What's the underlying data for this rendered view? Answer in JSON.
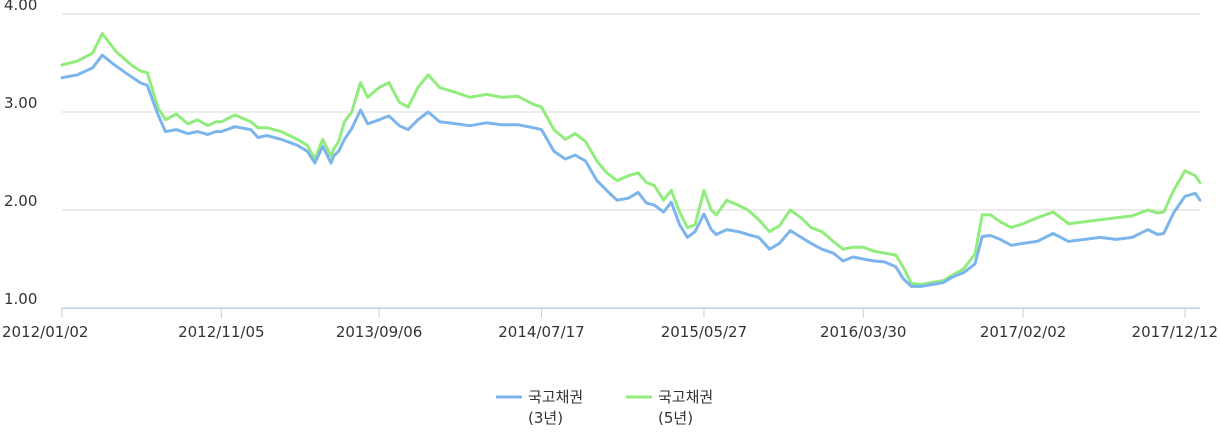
{
  "chart_data": {
    "type": "line",
    "title": "",
    "xlabel": "",
    "ylabel": "",
    "ylim": [
      1.0,
      4.0
    ],
    "xlim": [
      "2012/01/02",
      "2018/01/10"
    ],
    "grid": "horizontal",
    "legend_position": "bottom-center",
    "y_ticks": [
      "1.00",
      "2.00",
      "3.00",
      "4.00"
    ],
    "x_ticks": [
      "2012/01/02",
      "2012/11/05",
      "2013/09/06",
      "2014/07/17",
      "2015/05/27",
      "2016/03/30",
      "2017/02/02",
      "2017/12/12"
    ],
    "series": [
      {
        "name": "국고채권",
        "name_line2": "(3년)",
        "color": "#7cb5ec",
        "x": [
          "2012/01/02",
          "2012/02/01",
          "2012/03/01",
          "2012/03/20",
          "2012/04/15",
          "2012/05/15",
          "2012/06/01",
          "2012/06/15",
          "2012/07/05",
          "2012/07/20",
          "2012/08/10",
          "2012/09/01",
          "2012/09/20",
          "2012/10/10",
          "2012/10/25",
          "2012/11/05",
          "2012/12/01",
          "2013/01/01",
          "2013/01/15",
          "2013/02/01",
          "2013/03/01",
          "2013/04/01",
          "2013/04/20",
          "2013/05/05",
          "2013/05/20",
          "2013/06/05",
          "2013/06/10",
          "2013/06/20",
          "2013/07/01",
          "2013/07/15",
          "2013/08/01",
          "2013/08/15",
          "2013/09/06",
          "2013/09/25",
          "2013/10/15",
          "2013/11/01",
          "2013/11/20",
          "2013/12/10",
          "2014/01/01",
          "2014/02/01",
          "2014/03/01",
          "2014/04/01",
          "2014/05/01",
          "2014/06/01",
          "2014/07/01",
          "2014/07/17",
          "2014/08/10",
          "2014/09/01",
          "2014/09/20",
          "2014/10/10",
          "2014/11/01",
          "2014/11/20",
          "2014/12/10",
          "2015/01/01",
          "2015/01/20",
          "2015/02/05",
          "2015/02/20",
          "2015/03/10",
          "2015/03/25",
          "2015/04/10",
          "2015/04/25",
          "2015/05/10",
          "2015/05/27",
          "2015/06/10",
          "2015/06/20",
          "2015/07/10",
          "2015/08/01",
          "2015/08/20",
          "2015/09/10",
          "2015/10/01",
          "2015/10/20",
          "2015/11/10",
          "2015/12/01",
          "2015/12/20",
          "2016/01/10",
          "2016/02/01",
          "2016/02/20",
          "2016/03/10",
          "2016/03/30",
          "2016/04/20",
          "2016/05/10",
          "2016/06/01",
          "2016/06/15",
          "2016/07/01",
          "2016/07/20",
          "2016/08/10",
          "2016/09/01",
          "2016/09/20",
          "2016/10/10",
          "2016/11/01",
          "2016/11/15",
          "2016/12/01",
          "2016/12/20",
          "2017/01/10",
          "2017/02/02",
          "2017/03/01",
          "2017/04/01",
          "2017/05/01",
          "2017/06/01",
          "2017/07/01",
          "2017/08/01",
          "2017/09/01",
          "2017/10/01",
          "2017/10/20",
          "2017/11/01",
          "2017/11/20",
          "2017/12/12",
          "2018/01/01",
          "2018/01/10"
        ],
        "values": [
          3.35,
          3.38,
          3.45,
          3.58,
          3.47,
          3.36,
          3.3,
          3.27,
          2.98,
          2.8,
          2.82,
          2.78,
          2.8,
          2.77,
          2.8,
          2.8,
          2.85,
          2.82,
          2.74,
          2.76,
          2.72,
          2.66,
          2.6,
          2.48,
          2.65,
          2.48,
          2.55,
          2.6,
          2.72,
          2.83,
          3.02,
          2.88,
          2.92,
          2.96,
          2.86,
          2.82,
          2.92,
          3.0,
          2.9,
          2.88,
          2.86,
          2.89,
          2.87,
          2.87,
          2.84,
          2.82,
          2.6,
          2.52,
          2.56,
          2.5,
          2.3,
          2.2,
          2.1,
          2.12,
          2.18,
          2.07,
          2.05,
          1.98,
          2.08,
          1.85,
          1.72,
          1.78,
          1.96,
          1.8,
          1.75,
          1.8,
          1.78,
          1.75,
          1.72,
          1.6,
          1.66,
          1.79,
          1.72,
          1.66,
          1.6,
          1.56,
          1.48,
          1.52,
          1.5,
          1.48,
          1.47,
          1.42,
          1.3,
          1.22,
          1.22,
          1.24,
          1.26,
          1.32,
          1.36,
          1.45,
          1.73,
          1.74,
          1.7,
          1.64,
          1.66,
          1.68,
          1.76,
          1.68,
          1.7,
          1.72,
          1.7,
          1.72,
          1.8,
          1.75,
          1.76,
          1.97,
          2.14,
          2.17,
          2.1
        ]
      },
      {
        "name": "국고채권",
        "name_line2": "(5년)",
        "color": "#90ed7d",
        "x": [
          "2012/01/02",
          "2012/02/01",
          "2012/03/01",
          "2012/03/20",
          "2012/04/15",
          "2012/05/15",
          "2012/06/01",
          "2012/06/15",
          "2012/07/05",
          "2012/07/20",
          "2012/08/10",
          "2012/09/01",
          "2012/09/20",
          "2012/10/10",
          "2012/10/25",
          "2012/11/05",
          "2012/12/01",
          "2013/01/01",
          "2013/01/15",
          "2013/02/01",
          "2013/03/01",
          "2013/04/01",
          "2013/04/20",
          "2013/05/05",
          "2013/05/20",
          "2013/06/05",
          "2013/06/10",
          "2013/06/20",
          "2013/07/01",
          "2013/07/15",
          "2013/08/01",
          "2013/08/15",
          "2013/09/06",
          "2013/09/25",
          "2013/10/15",
          "2013/11/01",
          "2013/11/20",
          "2013/12/10",
          "2014/01/01",
          "2014/02/01",
          "2014/03/01",
          "2014/04/01",
          "2014/05/01",
          "2014/06/01",
          "2014/07/01",
          "2014/07/17",
          "2014/08/10",
          "2014/09/01",
          "2014/09/20",
          "2014/10/10",
          "2014/11/01",
          "2014/11/20",
          "2014/12/10",
          "2015/01/01",
          "2015/01/20",
          "2015/02/05",
          "2015/02/20",
          "2015/03/10",
          "2015/03/25",
          "2015/04/10",
          "2015/04/25",
          "2015/05/10",
          "2015/05/27",
          "2015/06/10",
          "2015/06/20",
          "2015/07/10",
          "2015/08/01",
          "2015/08/20",
          "2015/09/10",
          "2015/10/01",
          "2015/10/20",
          "2015/11/10",
          "2015/12/01",
          "2015/12/20",
          "2016/01/10",
          "2016/02/01",
          "2016/02/20",
          "2016/03/10",
          "2016/03/30",
          "2016/04/20",
          "2016/05/10",
          "2016/06/01",
          "2016/06/15",
          "2016/07/01",
          "2016/07/20",
          "2016/08/10",
          "2016/09/01",
          "2016/09/20",
          "2016/10/10",
          "2016/11/01",
          "2016/11/15",
          "2016/12/01",
          "2016/12/20",
          "2017/01/10",
          "2017/02/02",
          "2017/03/01",
          "2017/04/01",
          "2017/05/01",
          "2017/06/01",
          "2017/07/01",
          "2017/08/01",
          "2017/09/01",
          "2017/10/01",
          "2017/10/20",
          "2017/11/01",
          "2017/11/20",
          "2017/12/12",
          "2018/01/01",
          "2018/01/10"
        ],
        "values": [
          3.48,
          3.52,
          3.6,
          3.8,
          3.62,
          3.48,
          3.42,
          3.4,
          3.05,
          2.92,
          2.98,
          2.88,
          2.92,
          2.86,
          2.9,
          2.9,
          2.97,
          2.9,
          2.84,
          2.84,
          2.8,
          2.72,
          2.66,
          2.52,
          2.72,
          2.55,
          2.62,
          2.7,
          2.9,
          3.0,
          3.3,
          3.15,
          3.25,
          3.3,
          3.1,
          3.05,
          3.25,
          3.38,
          3.25,
          3.2,
          3.15,
          3.18,
          3.15,
          3.16,
          3.08,
          3.05,
          2.82,
          2.72,
          2.78,
          2.7,
          2.5,
          2.38,
          2.3,
          2.35,
          2.38,
          2.28,
          2.25,
          2.1,
          2.2,
          1.98,
          1.82,
          1.85,
          2.2,
          2.0,
          1.95,
          2.1,
          2.05,
          2.0,
          1.9,
          1.78,
          1.84,
          2.0,
          1.92,
          1.82,
          1.78,
          1.68,
          1.6,
          1.62,
          1.62,
          1.58,
          1.56,
          1.54,
          1.42,
          1.25,
          1.24,
          1.26,
          1.28,
          1.34,
          1.4,
          1.55,
          1.95,
          1.95,
          1.88,
          1.82,
          1.86,
          1.92,
          1.98,
          1.86,
          1.88,
          1.9,
          1.92,
          1.94,
          2.0,
          1.97,
          1.98,
          2.2,
          2.4,
          2.35,
          2.28
        ]
      }
    ]
  }
}
